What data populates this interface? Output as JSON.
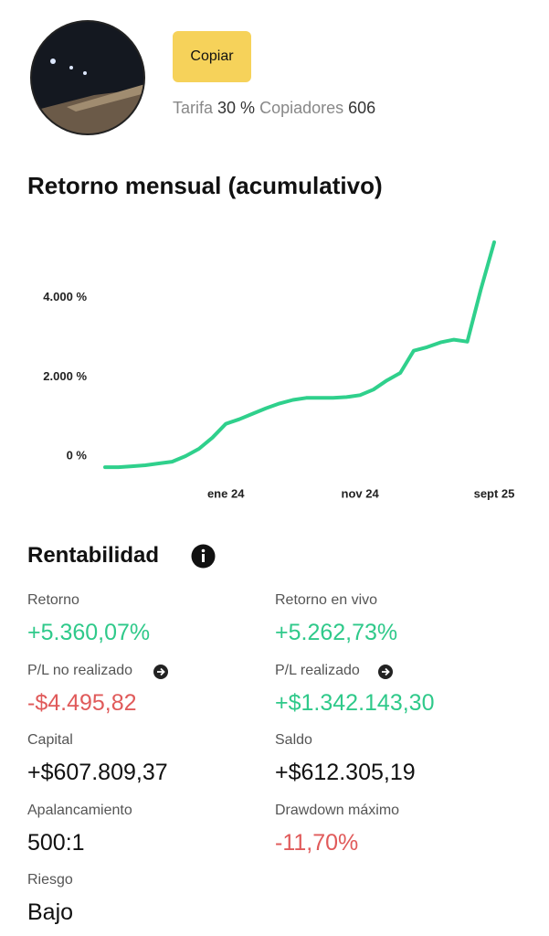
{
  "header": {
    "button": "Copiar",
    "fee_label": "Tarifa",
    "fee": "30 %",
    "copiers_label": "Copiadores",
    "copiers": "606"
  },
  "chart_data": {
    "type": "line",
    "title": "Retorno mensual (acumulativo)",
    "color": "#2fd08c",
    "categories": [
      null,
      null,
      null,
      null,
      null,
      null,
      null,
      null,
      null,
      "ene 24",
      null,
      null,
      null,
      null,
      null,
      null,
      null,
      null,
      null,
      "nov 24",
      null,
      null,
      null,
      null,
      null,
      null,
      null,
      null,
      null,
      "sept 25"
    ],
    "values": [
      -280,
      -280,
      -255,
      -230,
      -185,
      -140,
      0,
      185,
      465,
      815,
      930,
      1070,
      1210,
      1330,
      1420,
      1470,
      1470,
      1470,
      1490,
      1540,
      1680,
      1910,
      2100,
      2660,
      2750,
      2870,
      2940,
      2890,
      4200,
      5400
    ],
    "ylim": [
      -300,
      5400
    ],
    "yticks": [
      {
        "value": 0,
        "label": "0 %"
      },
      {
        "value": 2000,
        "label": "2.000 %"
      },
      {
        "value": 4000,
        "label": "4.000 %"
      }
    ],
    "grid": false
  },
  "profitability": {
    "title": "Rentabilidad",
    "metrics": [
      {
        "label": "Retorno",
        "value": "+5.360,07%"
      },
      {
        "label": "Retorno en vivo",
        "value": "+5.262,73%"
      },
      {
        "label": "P/L no realizado",
        "value": "-$4.495,82"
      },
      {
        "label": "P/L realizado",
        "value": "+$1.342.143,30"
      },
      {
        "label": "Capital",
        "value": "+$607.809,37"
      },
      {
        "label": "Saldo",
        "value": "+$612.305,19"
      },
      {
        "label": "Apalancamiento",
        "value": "500:1"
      },
      {
        "label": "Drawdown máximo",
        "value": "-11,70%"
      },
      {
        "label": "Riesgo",
        "value": "Bajo"
      }
    ]
  }
}
